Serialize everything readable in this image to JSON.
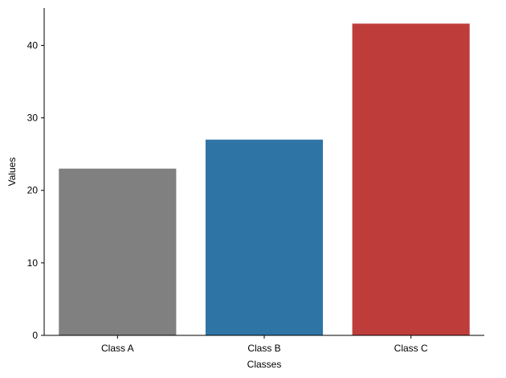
{
  "chart_data": {
    "type": "bar",
    "title": "",
    "xlabel": "Classes",
    "ylabel": "Values",
    "categories": [
      "Class A",
      "Class B",
      "Class C"
    ],
    "values": [
      23,
      27,
      43
    ],
    "colors": [
      "#808080",
      "#2e75a6",
      "#be3d3b"
    ],
    "ylim": [
      0,
      45.15
    ],
    "yticks": [
      0,
      10,
      20,
      30,
      40
    ],
    "grid": false,
    "legend": "none"
  }
}
